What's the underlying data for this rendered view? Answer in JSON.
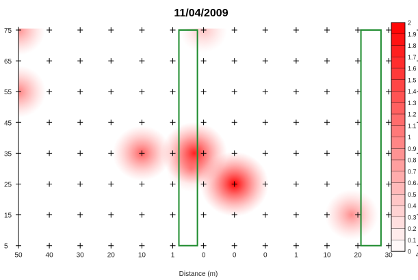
{
  "chart_data": {
    "type": "heatmap",
    "title": "11/04/2009",
    "xlabel": "Distance (m)",
    "ylabel": "",
    "x_tick_labels": [
      "50",
      "40",
      "30",
      "20",
      "10",
      "1",
      "0",
      "0",
      "0",
      "1",
      "10",
      "20",
      "30",
      "40",
      "50"
    ],
    "y_tick_labels": [
      "75",
      "65",
      "55",
      "45",
      "35",
      "25",
      "15",
      "5"
    ],
    "grid_markers": "plus",
    "colorbar": {
      "min": 0,
      "max": 2.0,
      "tick_labels": [
        "2",
        "1.9",
        "1.8",
        "1.7",
        "1.6",
        "1.5",
        "1.4",
        "1.3",
        "1.2",
        "1.1",
        "1",
        "0.9",
        "0.8",
        "0.7",
        "0.6",
        "0.5",
        "0.4",
        "0.3",
        "0.2",
        "0.1",
        "0"
      ],
      "low_color": "#ffffff",
      "high_color": "#ff0000"
    },
    "hotspots": [
      {
        "col": 0,
        "row": 75,
        "value": 0.9
      },
      {
        "col": 0,
        "row": 55,
        "value": 1.0
      },
      {
        "col": 4,
        "row": 35,
        "value": 1.25
      },
      {
        "col": 5.7,
        "row": 35,
        "value": 1.8
      },
      {
        "col": 5.6,
        "row": 30,
        "value": 0.6
      },
      {
        "col": 6,
        "row": 75,
        "value": 0.5
      },
      {
        "col": 7,
        "row": 25,
        "value": 2.0
      },
      {
        "col": 10.8,
        "row": 15,
        "value": 0.9
      }
    ],
    "highlight_boxes": [
      {
        "col_from": 5.2,
        "col_to": 5.8,
        "row_from": 5,
        "row_to": 75,
        "color": "#1e8c2e"
      },
      {
        "col_from": 11.1,
        "col_to": 11.75,
        "row_from": 5,
        "row_to": 75,
        "color": "#1e8c2e"
      }
    ]
  }
}
